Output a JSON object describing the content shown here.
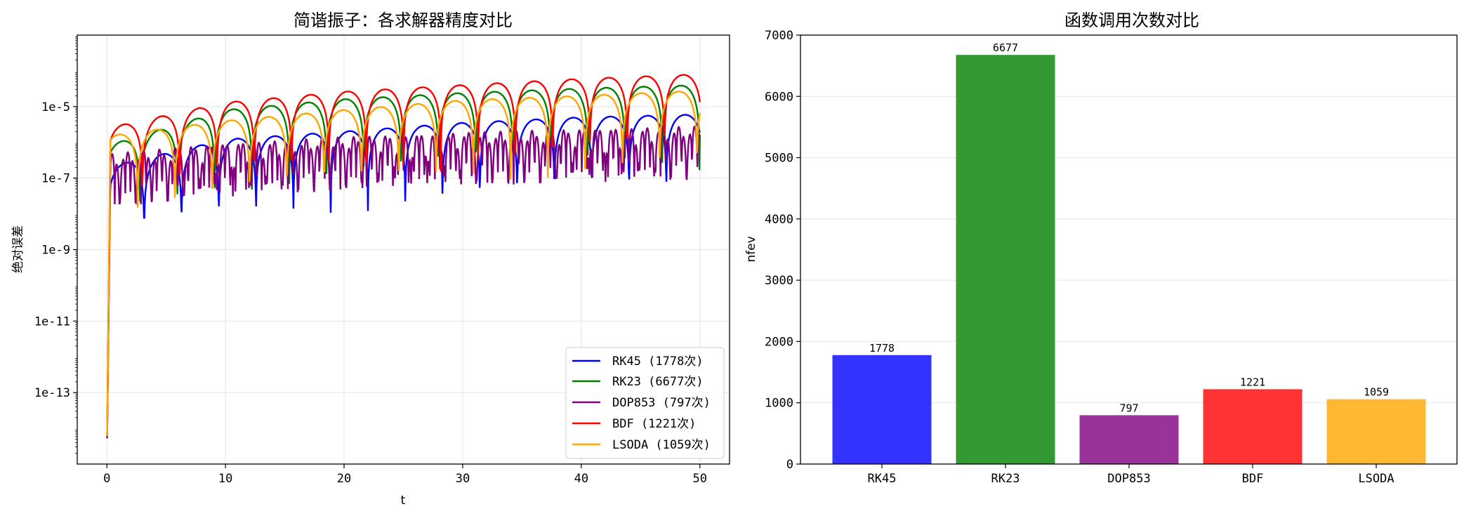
{
  "chart_data": [
    {
      "type": "line",
      "title": "简谐振子：各求解器精度对比",
      "xlabel": "t",
      "ylabel": "绝对误差",
      "xlim": [
        -2.5,
        52.5
      ],
      "ylim": [
        1e-15,
        0.001
      ],
      "yscale": "log",
      "xticks": [
        "0",
        "10",
        "20",
        "30",
        "40",
        "50"
      ],
      "yticks": [
        "1e-13",
        "1e-11",
        "1e-9",
        "1e-7",
        "1e-5"
      ],
      "grid": true,
      "legend_position": "lower-right",
      "series": [
        {
          "name": "RK45 (1778次)",
          "color": "#0000ff",
          "envelope": [
            [
              0,
              2e-07
            ],
            [
              10,
              1.2e-06
            ],
            [
              20,
              2e-06
            ],
            [
              30,
              3.5e-06
            ],
            [
              40,
              5e-06
            ],
            [
              50,
              6e-06
            ]
          ]
        },
        {
          "name": "RK23 (6677次)",
          "color": "#008000",
          "envelope": [
            [
              0,
              8e-07
            ],
            [
              10,
              8e-06
            ],
            [
              20,
              1.6e-05
            ],
            [
              30,
              2.4e-05
            ],
            [
              40,
              3.2e-05
            ],
            [
              50,
              4e-05
            ]
          ]
        },
        {
          "name": "DOP853 (797次)",
          "color": "#800080",
          "envelope": [
            [
              0,
              5e-07
            ],
            [
              10,
              1e-06
            ],
            [
              20,
              1.5e-06
            ],
            [
              30,
              2e-06
            ],
            [
              40,
              2.5e-06
            ],
            [
              50,
              3e-06
            ]
          ]
        },
        {
          "name": "BDF (1221次)",
          "color": "#ff0000",
          "envelope": [
            [
              0,
              2.5e-06
            ],
            [
              10,
              1.3e-05
            ],
            [
              20,
              2.6e-05
            ],
            [
              30,
              4e-05
            ],
            [
              40,
              6e-05
            ],
            [
              50,
              8e-05
            ]
          ]
        },
        {
          "name": "LSODA (1059次)",
          "color": "#ffa500",
          "envelope": [
            [
              0,
              1.5e-06
            ],
            [
              10,
              4e-06
            ],
            [
              20,
              8e-06
            ],
            [
              30,
              1.5e-05
            ],
            [
              40,
              2e-05
            ],
            [
              50,
              2.8e-05
            ]
          ]
        }
      ]
    },
    {
      "type": "bar",
      "title": "函数调用次数对比",
      "xlabel": "",
      "ylabel": "nfev",
      "ylim": [
        0,
        7000
      ],
      "yticks": [
        "0",
        "1000",
        "2000",
        "3000",
        "4000",
        "5000",
        "6000",
        "7000"
      ],
      "grid": true,
      "categories": [
        "RK45",
        "RK23",
        "DOP853",
        "BDF",
        "LSODA"
      ],
      "values": [
        1778,
        6677,
        797,
        1221,
        1059
      ],
      "labels": [
        "1778",
        "6677",
        "797",
        "1221",
        "1059"
      ],
      "colors": [
        "#3333ff",
        "#339933",
        "#993399",
        "#ff3333",
        "#ffb833"
      ]
    }
  ]
}
